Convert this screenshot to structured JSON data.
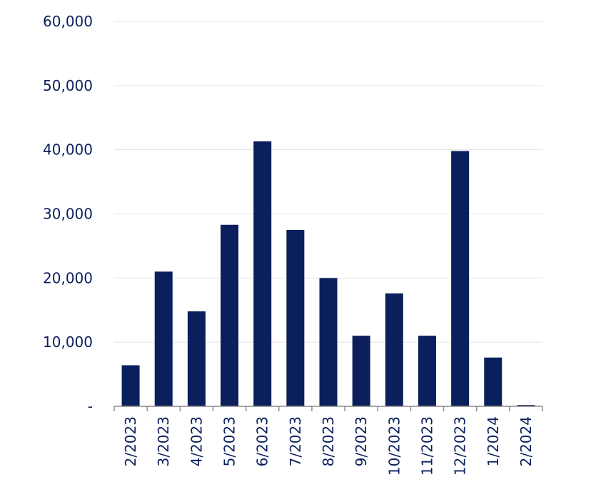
{
  "chart_data": {
    "type": "bar",
    "title": "",
    "xlabel": "",
    "ylabel": "",
    "categories": [
      "2/2023",
      "3/2023",
      "4/2023",
      "5/2023",
      "6/2023",
      "7/2023",
      "8/2023",
      "9/2023",
      "10/2023",
      "11/2023",
      "12/2023",
      "1/2024",
      "2/2024"
    ],
    "values": [
      6400,
      21000,
      14800,
      28300,
      41300,
      27500,
      20000,
      11000,
      17600,
      11000,
      39800,
      7600,
      200
    ],
    "ylim": [
      0,
      60000
    ],
    "yticks": [
      0,
      10000,
      20000,
      30000,
      40000,
      50000,
      60000
    ],
    "ytick_labels": [
      "-",
      "10,000",
      "20,000",
      "30,000",
      "40,000",
      "50,000",
      "60,000"
    ],
    "grid": true,
    "bar_color": "#0b1f5c"
  }
}
